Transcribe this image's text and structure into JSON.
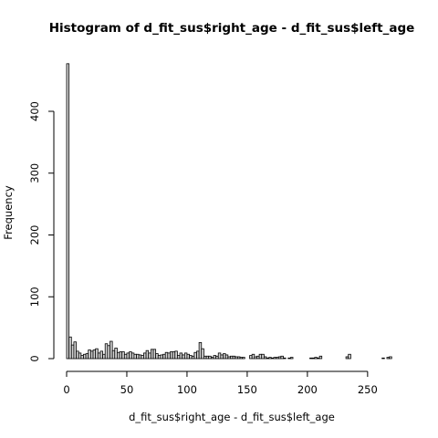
{
  "chart_data": {
    "type": "bar",
    "title": "Histogram of d_fit_sus$right_age - d_fit_sus$left_age",
    "xlabel": "d_fit_sus$right_age - d_fit_sus$left_age",
    "ylabel": "Frequency",
    "bin_width": 2,
    "bin_start": 0,
    "xticks": [
      0,
      50,
      100,
      150,
      200,
      250
    ],
    "yticks": [
      0,
      100,
      200,
      300,
      400
    ],
    "ylim": [
      0,
      480
    ],
    "values": [
      477,
      35,
      22,
      27,
      12,
      9,
      5,
      7,
      8,
      14,
      12,
      14,
      16,
      9,
      12,
      7,
      24,
      21,
      28,
      13,
      17,
      10,
      11,
      11,
      7,
      9,
      11,
      9,
      7,
      7,
      6,
      5,
      9,
      13,
      9,
      15,
      15,
      8,
      5,
      6,
      7,
      10,
      9,
      11,
      11,
      12,
      5,
      9,
      6,
      9,
      7,
      5,
      4,
      10,
      12,
      26,
      16,
      4,
      4,
      4,
      2,
      5,
      4,
      9,
      6,
      8,
      6,
      3,
      4,
      4,
      3,
      3,
      2,
      2,
      0,
      0,
      5,
      7,
      3,
      4,
      7,
      7,
      3,
      1,
      2,
      1,
      2,
      2,
      3,
      4,
      1,
      0,
      1,
      2,
      0,
      0,
      0,
      0,
      0,
      0,
      0,
      1,
      1,
      2,
      1,
      4,
      0,
      0,
      0,
      0,
      0,
      0,
      0,
      0,
      0,
      0,
      3,
      7,
      0,
      0,
      0,
      0,
      0,
      0,
      0,
      0,
      0,
      0,
      0,
      0,
      0,
      1,
      0,
      2,
      3
    ]
  }
}
